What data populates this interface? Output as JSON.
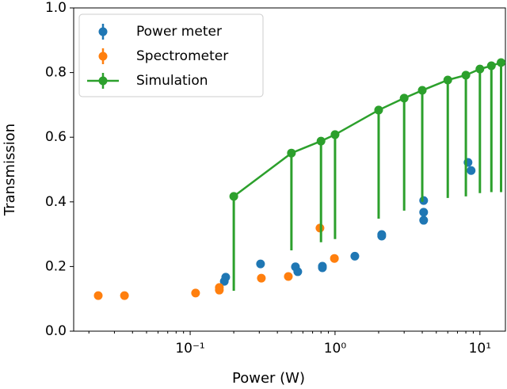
{
  "chart_data": {
    "type": "errorbar",
    "xlabel": "Power (W)",
    "ylabel": "Transmission",
    "xscale": "log",
    "xlim": [
      0.0157,
      15
    ],
    "ylim": [
      0,
      1
    ],
    "xticks": [
      {
        "value": 0.1,
        "label": "10⁻¹"
      },
      {
        "value": 1,
        "label": "10⁰"
      },
      {
        "value": 10,
        "label": "10¹"
      }
    ],
    "xminor_ticks": [
      0.02,
      0.03,
      0.04,
      0.05,
      0.06,
      0.07,
      0.08,
      0.09,
      0.2,
      0.3,
      0.4,
      0.5,
      0.6,
      0.7,
      0.8,
      0.9,
      2,
      3,
      4,
      5,
      6,
      7,
      8,
      9
    ],
    "yticks": [
      {
        "value": 0,
        "label": "0.0"
      },
      0.2,
      0.4,
      0.6,
      0.8,
      {
        "value": 1,
        "label": "1.0"
      }
    ],
    "legend": "upper left",
    "series": [
      {
        "name": "Power meter",
        "color": "#1f77b4",
        "line": false,
        "x": [
          0.172,
          0.176,
          0.306,
          0.533,
          0.553,
          0.818,
          0.818,
          1.37,
          2.1,
          2.1,
          4.09,
          4.09,
          4.09,
          8.28,
          8.7
        ],
        "values": [
          0.154,
          0.167,
          0.208,
          0.199,
          0.184,
          0.196,
          0.201,
          0.232,
          0.299,
          0.294,
          0.404,
          0.368,
          0.343,
          0.522,
          0.497
        ]
      },
      {
        "name": "Spectrometer",
        "color": "#ff7f0e",
        "line": false,
        "x": [
          0.0232,
          0.0352,
          0.109,
          0.159,
          0.159,
          0.31,
          0.476,
          0.787,
          0.99
        ],
        "values": [
          0.11,
          0.11,
          0.118,
          0.135,
          0.127,
          0.164,
          0.169,
          0.319,
          0.225
        ]
      },
      {
        "name": "Simulation",
        "color": "#2ca02c",
        "line": true,
        "x": [
          0.2,
          0.5,
          0.8,
          1,
          2,
          3,
          4,
          6,
          8,
          10,
          12,
          14
        ],
        "values": [
          0.417,
          0.551,
          0.588,
          0.608,
          0.684,
          0.721,
          0.745,
          0.777,
          0.792,
          0.811,
          0.821,
          0.831
        ],
        "lower": [
          0.125,
          0.25,
          0.275,
          0.285,
          0.348,
          0.373,
          0.4,
          0.412,
          0.417,
          0.427,
          0.43,
          0.43
        ]
      }
    ]
  }
}
